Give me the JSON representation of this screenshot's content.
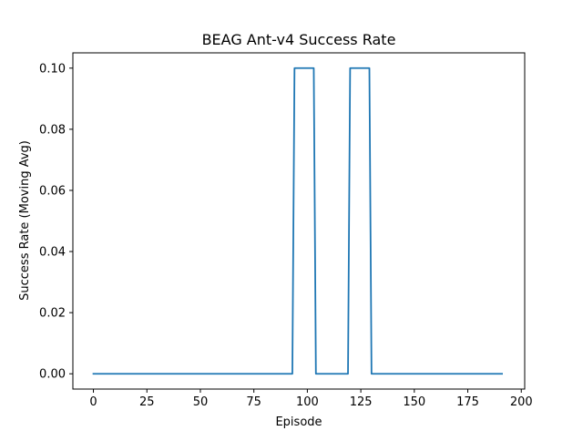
{
  "chart_data": {
    "type": "line",
    "title": "BEAG Ant-v4 Success Rate",
    "xlabel": "Episode",
    "ylabel": "Success Rate (Moving Avg)",
    "xlim": [
      -9.6,
      201.6
    ],
    "ylim": [
      -0.005,
      0.105
    ],
    "xticks": [
      0,
      25,
      50,
      75,
      100,
      125,
      150,
      175,
      200
    ],
    "xtick_labels": [
      "0",
      "25",
      "50",
      "75",
      "100",
      "125",
      "150",
      "175",
      "200"
    ],
    "yticks": [
      0.0,
      0.02,
      0.04,
      0.06,
      0.08,
      0.1
    ],
    "ytick_labels": [
      "0.00",
      "0.02",
      "0.04",
      "0.06",
      "0.08",
      "0.10"
    ],
    "grid": false,
    "legend": "none",
    "series": [
      {
        "color": "#1f77b4",
        "x": [
          0,
          93,
          94,
          103,
          104,
          119,
          120,
          129,
          130,
          191
        ],
        "y": [
          0,
          0,
          0.1,
          0.1,
          0,
          0,
          0.1,
          0.1,
          0,
          0
        ]
      }
    ]
  }
}
